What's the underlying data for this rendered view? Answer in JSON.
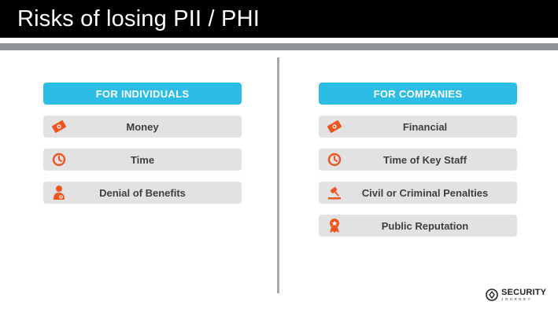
{
  "title": "Risks of losing PII / PHI",
  "colors": {
    "accent": "#2cbde6",
    "icon": "#f0541e",
    "item_bg": "#e2e2e2",
    "title_bg": "#000000"
  },
  "individuals": {
    "header": "FOR INDIVIDUALS",
    "items": [
      {
        "label": "Money",
        "icon": "money-icon"
      },
      {
        "label": "Time",
        "icon": "clock-icon"
      },
      {
        "label": "Denial of Benefits",
        "icon": "person-icon"
      }
    ]
  },
  "companies": {
    "header": "FOR COMPANIES",
    "items": [
      {
        "label": "Financial",
        "icon": "money-icon"
      },
      {
        "label": "Time of Key Staff",
        "icon": "clock-icon"
      },
      {
        "label": "Civil or Criminal Penalties",
        "icon": "gavel-icon"
      },
      {
        "label": "Public Reputation",
        "icon": "award-ribbon-icon"
      }
    ]
  },
  "logo": {
    "line1": "SECURITY",
    "line2": "JOURNEY"
  }
}
